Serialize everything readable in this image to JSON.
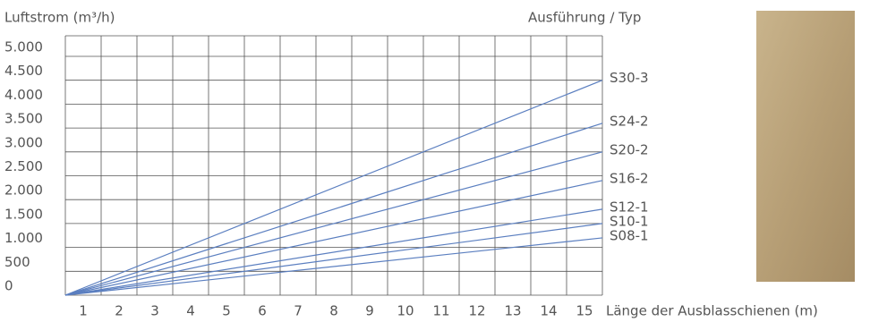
{
  "chart_data": {
    "type": "line",
    "y_label": "Luftstrom (m³/h)",
    "x_label": "Länge der Ausblasschienen (m)",
    "legend_title": "Ausführung / Typ",
    "xlim": [
      0,
      15
    ],
    "xticks": [
      1,
      2,
      3,
      4,
      5,
      6,
      7,
      8,
      9,
      10,
      11,
      12,
      13,
      14,
      15
    ],
    "ylim": [
      0,
      5000
    ],
    "yticks": [
      0,
      500,
      {
        "value": 1000,
        "label": "1.000"
      },
      {
        "value": 1500,
        "label": "1.500"
      },
      {
        "value": 2000,
        "label": "2.000"
      },
      {
        "value": 2500,
        "label": "2.500"
      },
      {
        "value": 3000,
        "label": "3.000"
      },
      {
        "value": 3500,
        "label": "3.500"
      },
      {
        "value": 4000,
        "label": "4.000"
      },
      {
        "value": 4500,
        "label": "4.500"
      },
      {
        "value": 5000,
        "label": "5.000"
      }
    ],
    "grid": true,
    "series": [
      {
        "name": "S30-3",
        "color": "#5b7fc0",
        "x": [
          0,
          15
        ],
        "values": [
          0,
          4500
        ]
      },
      {
        "name": "S24-2",
        "color": "#5b7fc0",
        "x": [
          0,
          15
        ],
        "values": [
          0,
          3600
        ]
      },
      {
        "name": "S20-2",
        "color": "#5b7fc0",
        "x": [
          0,
          15
        ],
        "values": [
          0,
          3000
        ]
      },
      {
        "name": "S16-2",
        "color": "#5b7fc0",
        "x": [
          0,
          15
        ],
        "values": [
          0,
          2400
        ]
      },
      {
        "name": "S12-1",
        "color": "#5b7fc0",
        "x": [
          0,
          15
        ],
        "values": [
          0,
          1800
        ]
      },
      {
        "name": "S10-1",
        "color": "#5b7fc0",
        "x": [
          0,
          15
        ],
        "values": [
          0,
          1500
        ]
      },
      {
        "name": "S08-1",
        "color": "#5b7fc0",
        "x": [
          0,
          15
        ],
        "values": [
          0,
          1200
        ]
      }
    ]
  }
}
